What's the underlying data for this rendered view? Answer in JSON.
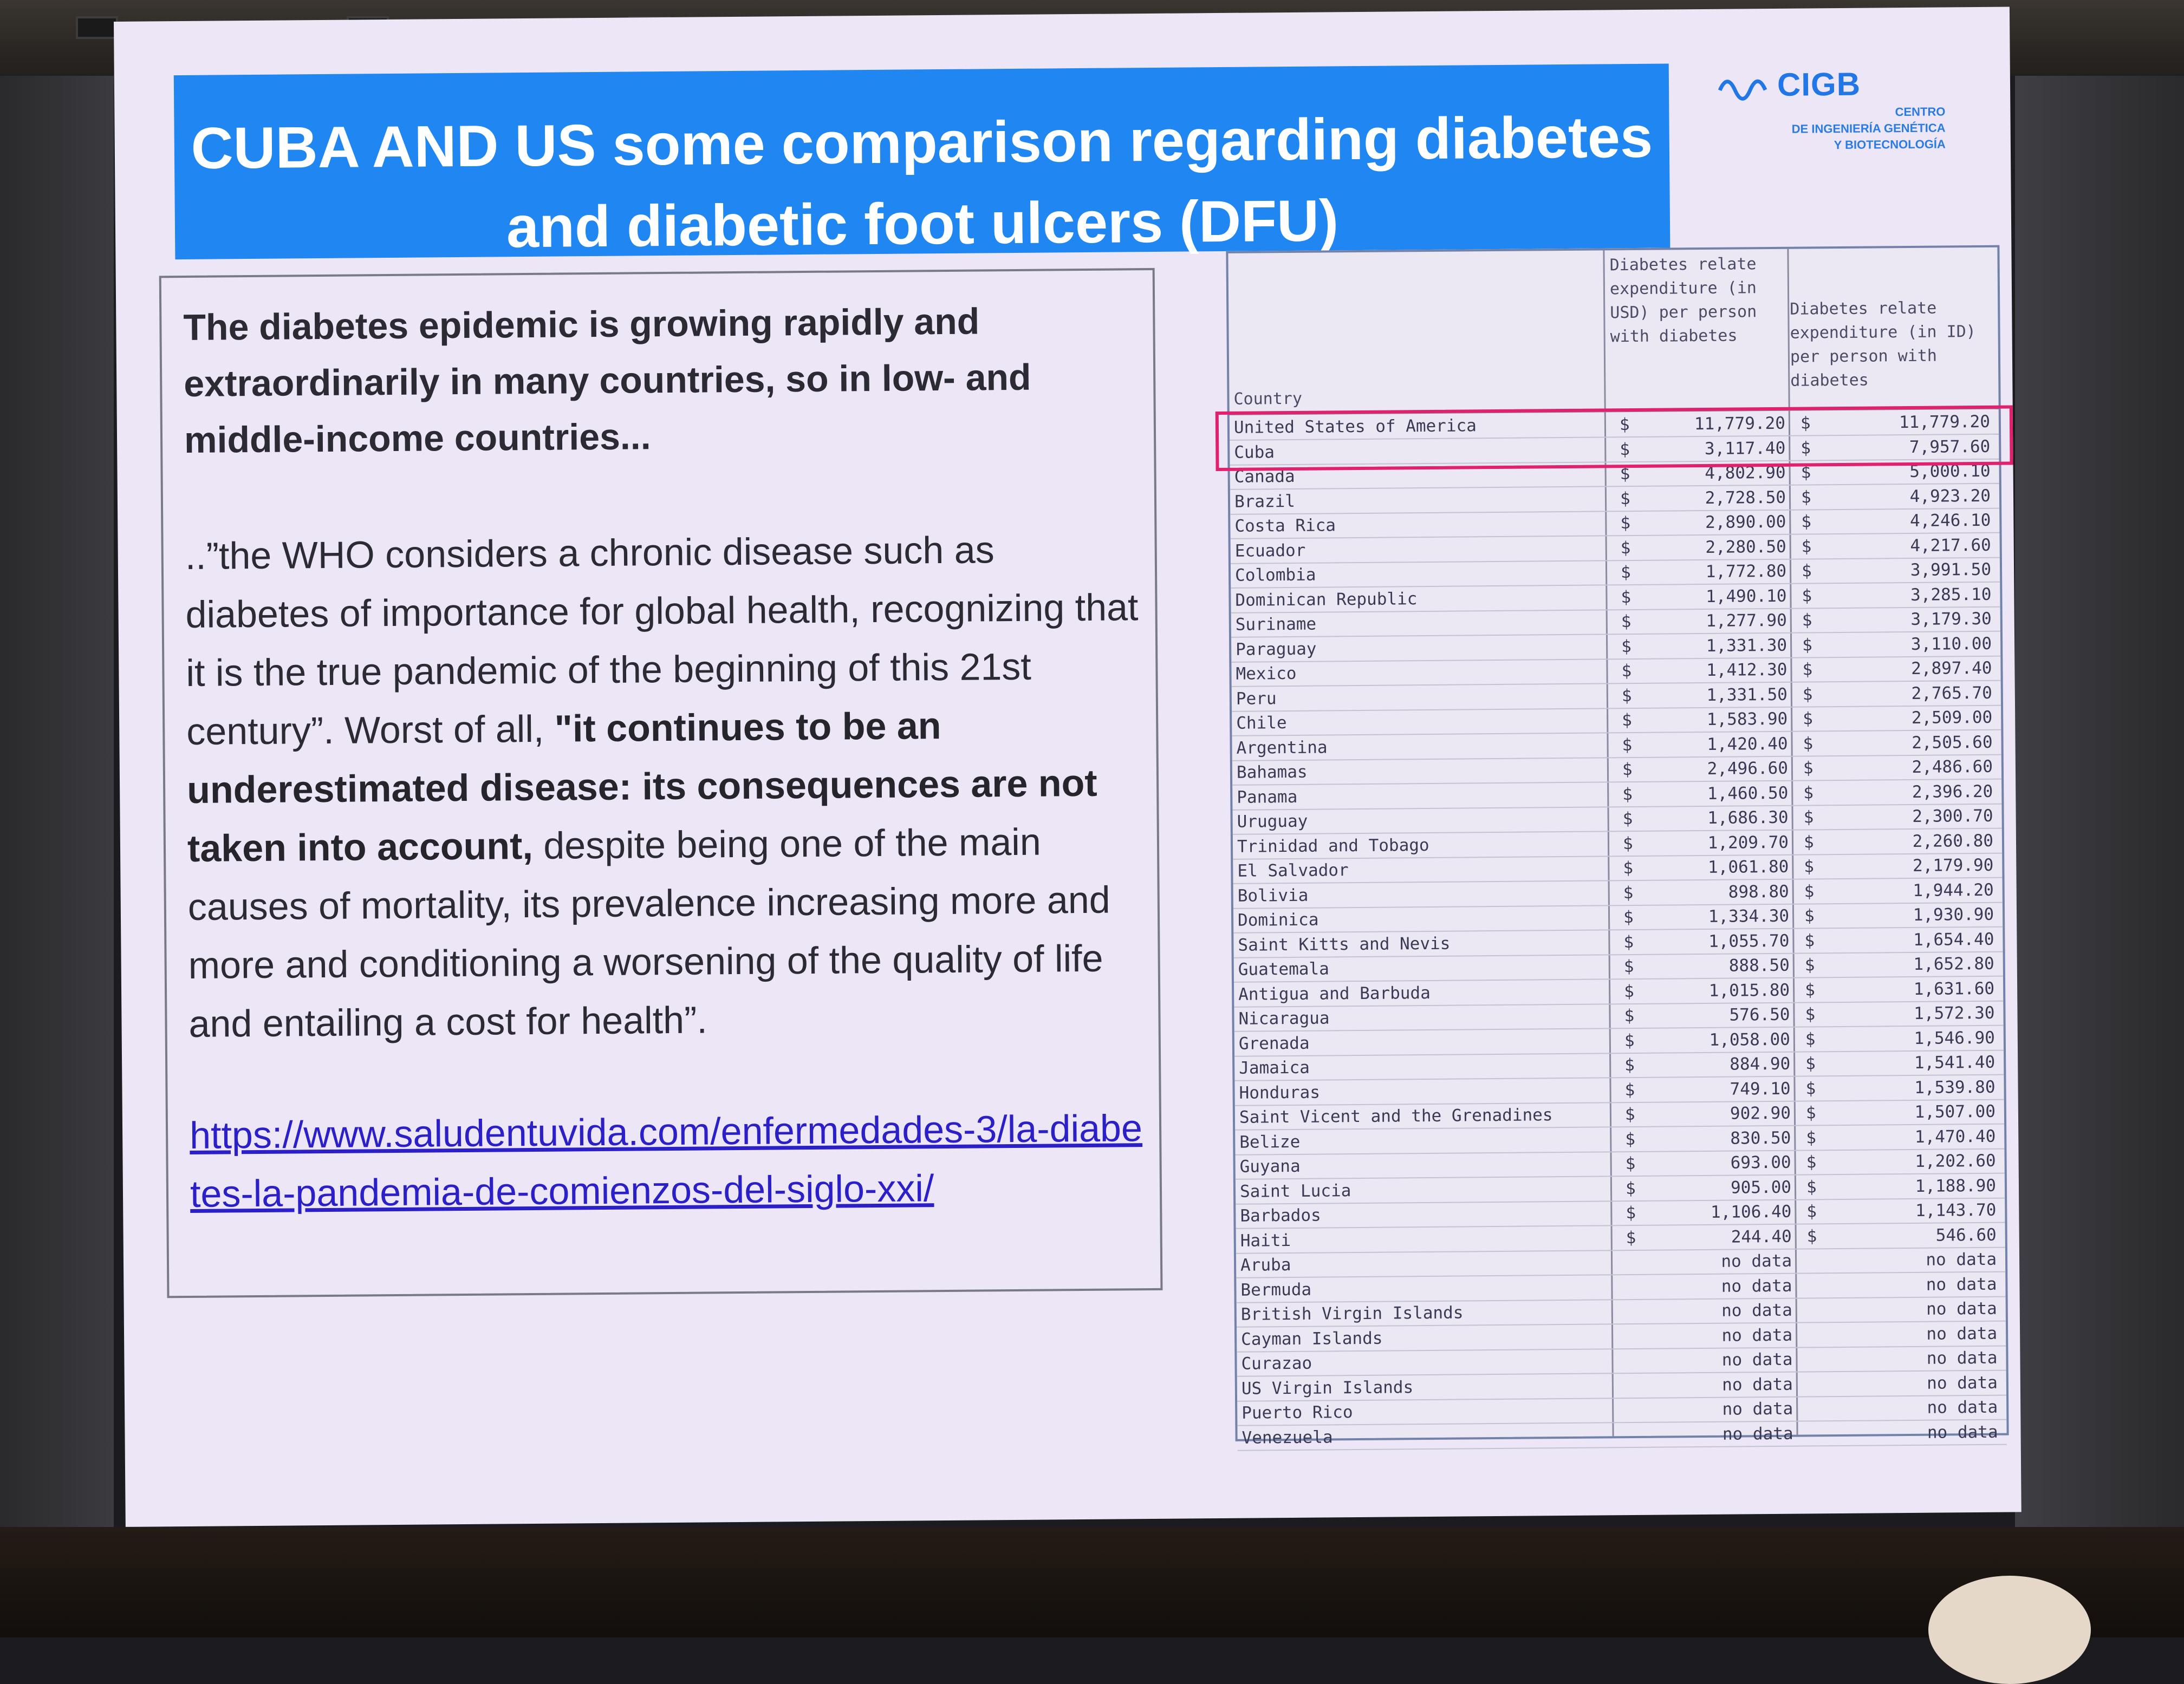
{
  "slide": {
    "title": "CUBA AND US some comparison regarding  diabetes and diabetic foot ulcers (DFU)",
    "logo": {
      "name": "CIGB",
      "subtitle": "CENTRO\nDE INGENIERÍA GENÉTICA\nY BIOTECNOLOGÍA"
    },
    "paragraph1": "The diabetes epidemic is growing rapidly and extraordinarily in many countries, so in low- and middle-income countries...",
    "paragraph2_start": "..”the WHO considers a chronic disease such as diabetes of importance for global health, recognizing that it is the true pandemic of the beginning of this 21st century”. Worst of all, ",
    "paragraph2_bold": "\"it continues to be an underestimated disease: its consequences are not taken into account,",
    "paragraph2_end": " despite being one of the main causes of mortality, its prevalence increasing more and more and conditioning a worsening of the quality of life and entailing a cost for health”.",
    "link": "https://www.saludentuvida.com/enfermedades-3/la-diabetes-la-pandemia-de-comienzos-del-siglo-xxi/"
  },
  "table": {
    "headers": {
      "country": "Country",
      "usd": "Diabetes relate expenditure (in USD) per person with diabetes",
      "id": "Diabetes relate expenditure (in ID) per person with diabetes"
    },
    "rows": [
      {
        "country": "United States of America",
        "d1": "$",
        "usd": "11,779.20",
        "d2": "$",
        "id": "11,779.20"
      },
      {
        "country": "Cuba",
        "d1": "$",
        "usd": "3,117.40",
        "d2": "$",
        "id": "7,957.60"
      },
      {
        "country": "Canada",
        "d1": "$",
        "usd": "4,802.90",
        "d2": "$",
        "id": "5,000.10"
      },
      {
        "country": "Brazil",
        "d1": "$",
        "usd": "2,728.50",
        "d2": "$",
        "id": "4,923.20"
      },
      {
        "country": "Costa Rica",
        "d1": "$",
        "usd": "2,890.00",
        "d2": "$",
        "id": "4,246.10"
      },
      {
        "country": "Ecuador",
        "d1": "$",
        "usd": "2,280.50",
        "d2": "$",
        "id": "4,217.60"
      },
      {
        "country": "Colombia",
        "d1": "$",
        "usd": "1,772.80",
        "d2": "$",
        "id": "3,991.50"
      },
      {
        "country": "Dominican Republic",
        "d1": "$",
        "usd": "1,490.10",
        "d2": "$",
        "id": "3,285.10"
      },
      {
        "country": "Suriname",
        "d1": "$",
        "usd": "1,277.90",
        "d2": "$",
        "id": "3,179.30"
      },
      {
        "country": "Paraguay",
        "d1": "$",
        "usd": "1,331.30",
        "d2": "$",
        "id": "3,110.00"
      },
      {
        "country": "Mexico",
        "d1": "$",
        "usd": "1,412.30",
        "d2": "$",
        "id": "2,897.40"
      },
      {
        "country": "Peru",
        "d1": "$",
        "usd": "1,331.50",
        "d2": "$",
        "id": "2,765.70"
      },
      {
        "country": "Chile",
        "d1": "$",
        "usd": "1,583.90",
        "d2": "$",
        "id": "2,509.00"
      },
      {
        "country": "Argentina",
        "d1": "$",
        "usd": "1,420.40",
        "d2": "$",
        "id": "2,505.60"
      },
      {
        "country": "Bahamas",
        "d1": "$",
        "usd": "2,496.60",
        "d2": "$",
        "id": "2,486.60"
      },
      {
        "country": "Panama",
        "d1": "$",
        "usd": "1,460.50",
        "d2": "$",
        "id": "2,396.20"
      },
      {
        "country": "Uruguay",
        "d1": "$",
        "usd": "1,686.30",
        "d2": "$",
        "id": "2,300.70"
      },
      {
        "country": "Trinidad and Tobago",
        "d1": "$",
        "usd": "1,209.70",
        "d2": "$",
        "id": "2,260.80"
      },
      {
        "country": "El Salvador",
        "d1": "$",
        "usd": "1,061.80",
        "d2": "$",
        "id": "2,179.90"
      },
      {
        "country": "Bolivia",
        "d1": "$",
        "usd": "898.80",
        "d2": "$",
        "id": "1,944.20"
      },
      {
        "country": "Dominica",
        "d1": "$",
        "usd": "1,334.30",
        "d2": "$",
        "id": "1,930.90"
      },
      {
        "country": "Saint Kitts and Nevis",
        "d1": "$",
        "usd": "1,055.70",
        "d2": "$",
        "id": "1,654.40"
      },
      {
        "country": "Guatemala",
        "d1": "$",
        "usd": "888.50",
        "d2": "$",
        "id": "1,652.80"
      },
      {
        "country": "Antigua and Barbuda",
        "d1": "$",
        "usd": "1,015.80",
        "d2": "$",
        "id": "1,631.60"
      },
      {
        "country": "Nicaragua",
        "d1": "$",
        "usd": "576.50",
        "d2": "$",
        "id": "1,572.30"
      },
      {
        "country": "Grenada",
        "d1": "$",
        "usd": "1,058.00",
        "d2": "$",
        "id": "1,546.90"
      },
      {
        "country": "Jamaica",
        "d1": "$",
        "usd": "884.90",
        "d2": "$",
        "id": "1,541.40"
      },
      {
        "country": "Honduras",
        "d1": "$",
        "usd": "749.10",
        "d2": "$",
        "id": "1,539.80"
      },
      {
        "country": "Saint Vicent and the Grenadines",
        "d1": "$",
        "usd": "902.90",
        "d2": "$",
        "id": "1,507.00"
      },
      {
        "country": "Belize",
        "d1": "$",
        "usd": "830.50",
        "d2": "$",
        "id": "1,470.40"
      },
      {
        "country": "Guyana",
        "d1": "$",
        "usd": "693.00",
        "d2": "$",
        "id": "1,202.60"
      },
      {
        "country": "Saint Lucia",
        "d1": "$",
        "usd": "905.00",
        "d2": "$",
        "id": "1,188.90"
      },
      {
        "country": "Barbados",
        "d1": "$",
        "usd": "1,106.40",
        "d2": "$",
        "id": "1,143.70"
      },
      {
        "country": "Haiti",
        "d1": "$",
        "usd": "244.40",
        "d2": "$",
        "id": "546.60"
      },
      {
        "country": "Aruba",
        "d1": "",
        "usd": "no data",
        "d2": "",
        "id": "no data"
      },
      {
        "country": "Bermuda",
        "d1": "",
        "usd": "no data",
        "d2": "",
        "id": "no data"
      },
      {
        "country": "British Virgin Islands",
        "d1": "",
        "usd": "no data",
        "d2": "",
        "id": "no data"
      },
      {
        "country": "Cayman Islands",
        "d1": "",
        "usd": "no data",
        "d2": "",
        "id": "no data"
      },
      {
        "country": "Curazao",
        "d1": "",
        "usd": "no data",
        "d2": "",
        "id": "no data"
      },
      {
        "country": "US Virgin Islands",
        "d1": "",
        "usd": "no data",
        "d2": "",
        "id": "no data"
      },
      {
        "country": "Puerto Rico",
        "d1": "",
        "usd": "no data",
        "d2": "",
        "id": "no data"
      },
      {
        "country": "Venezuela",
        "d1": "",
        "usd": "no data",
        "d2": "",
        "id": "no data"
      }
    ]
  },
  "colors": {
    "title_bar": "#1f86f2",
    "slide_background": "#ece6f6",
    "highlight_box": "#e0226e",
    "link": "#2b1fc8"
  }
}
